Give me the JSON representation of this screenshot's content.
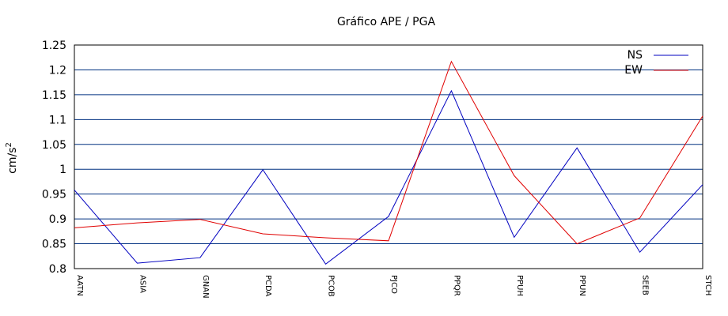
{
  "chart_data": {
    "type": "line",
    "title": "Gráfico  APE / PGA",
    "ylabel": "cm/s",
    "ylabel_superscript": "2",
    "xlabel": "",
    "categories": [
      "AATN",
      "ASIA",
      "GNAN",
      "PCDA",
      "PCOB",
      "PJCO",
      "PPQR",
      "PPUH",
      "PPUN",
      "SEEB",
      "STCH"
    ],
    "ylim": [
      0.8,
      1.25
    ],
    "yticks": [
      "0.8",
      "0.85",
      "0.9",
      "0.95",
      "1",
      "1.05",
      "1.1",
      "1.15",
      "1.2",
      "1.25"
    ],
    "grid": true,
    "legend_position": "top-right",
    "series": [
      {
        "name": "NS",
        "color": "#0000c0",
        "values": [
          0.958,
          0.811,
          0.822,
          0.999,
          0.809,
          0.905,
          1.158,
          0.863,
          1.043,
          0.833,
          0.969
        ]
      },
      {
        "name": "EW",
        "color": "#e00000",
        "values": [
          0.882,
          0.892,
          0.899,
          0.87,
          0.862,
          0.856,
          1.217,
          0.987,
          0.85,
          0.902,
          1.107
        ]
      }
    ],
    "gridline_color": "#003080"
  }
}
